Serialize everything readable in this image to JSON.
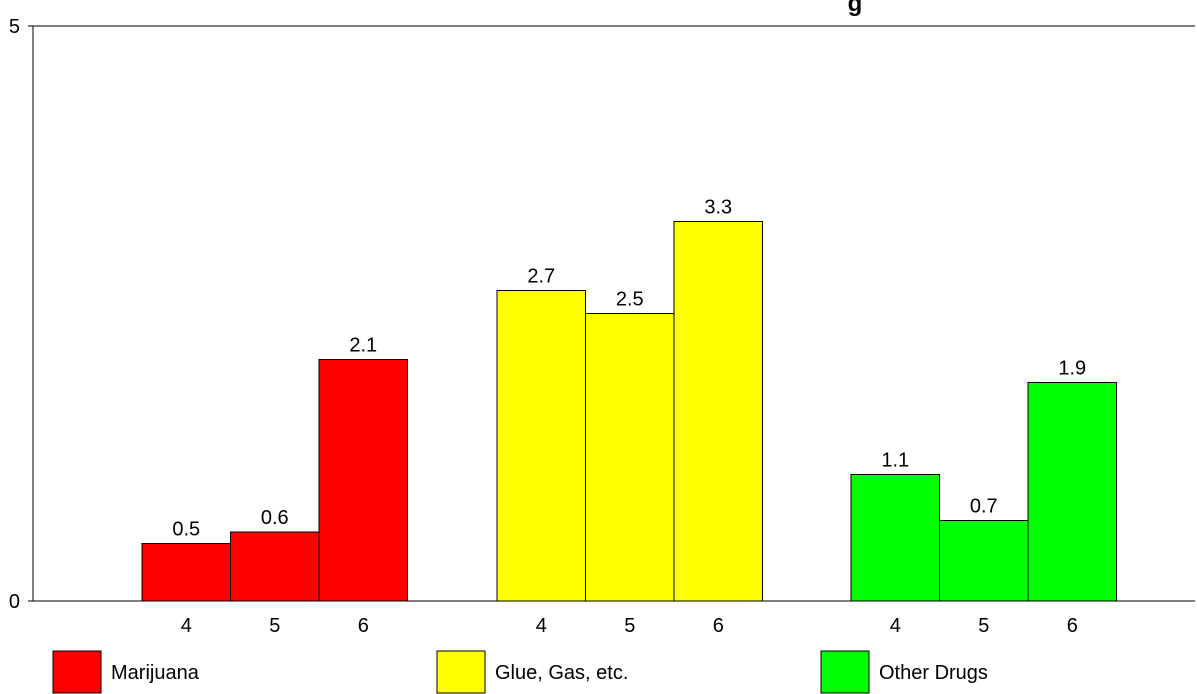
{
  "chart_data": {
    "type": "bar",
    "title": "g",
    "xlabel": "",
    "ylabel": "",
    "ylim": [
      0,
      5
    ],
    "y_ticks": [
      "0",
      "5"
    ],
    "grid": false,
    "legend_position": "bottom",
    "groups": [
      {
        "name": "Marijuana",
        "color": "#ff0000",
        "categories": [
          "4",
          "5",
          "6"
        ],
        "values": [
          0.5,
          0.6,
          2.1
        ],
        "labels": [
          "0.5",
          "0.6",
          "2.1"
        ]
      },
      {
        "name": "Glue, Gas, etc.",
        "color": "#ffff00",
        "categories": [
          "4",
          "5",
          "6"
        ],
        "values": [
          2.7,
          2.5,
          3.3
        ],
        "labels": [
          "2.7",
          "2.5",
          "3.3"
        ]
      },
      {
        "name": "Other Drugs",
        "color": "#00ff00",
        "categories": [
          "4",
          "5",
          "6"
        ],
        "values": [
          1.1,
          0.7,
          1.9
        ],
        "labels": [
          "1.1",
          "0.7",
          "1.9"
        ]
      }
    ]
  }
}
